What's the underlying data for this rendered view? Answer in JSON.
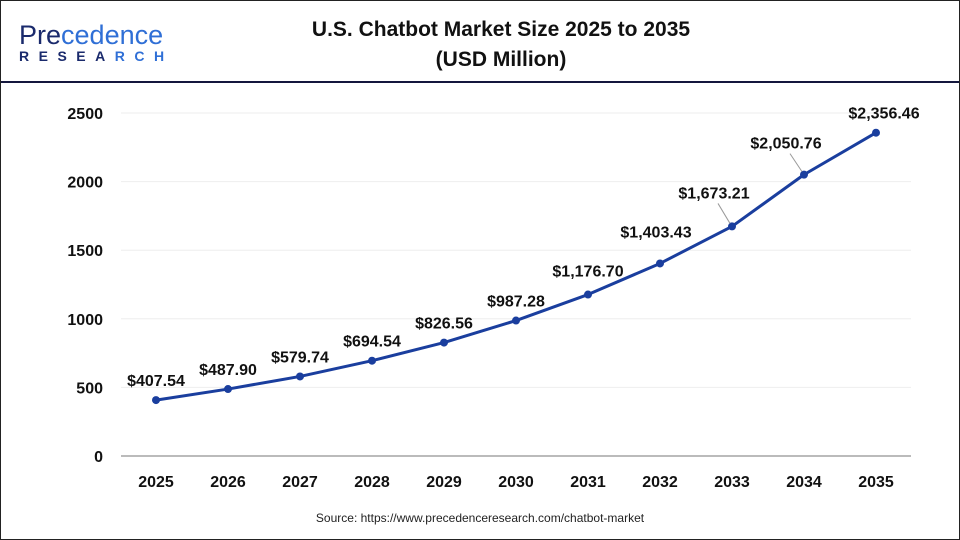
{
  "logo": {
    "line1": "Precedence",
    "line2": "RESEARCH"
  },
  "title_line1": "U.S. Chatbot Market Size 2025 to 2035",
  "title_line2": "(USD Million)",
  "source": "Source: https://www.precedenceresearch.com/chatbot-market",
  "colors": {
    "line": "#1a3e9e",
    "grid": "#eeeeee",
    "axis": "#bbbbbb"
  },
  "chart_data": {
    "type": "line",
    "title": "U.S. Chatbot Market Size 2025 to 2035 (USD Million)",
    "xlabel": "",
    "ylabel": "",
    "categories": [
      "2025",
      "2026",
      "2027",
      "2028",
      "2029",
      "2030",
      "2031",
      "2032",
      "2033",
      "2034",
      "2035"
    ],
    "values": [
      407.54,
      487.9,
      579.74,
      694.54,
      826.56,
      987.28,
      1176.7,
      1403.43,
      1673.21,
      2050.76,
      2356.46
    ],
    "labels": [
      "$407.54",
      "$487.90",
      "$579.74",
      "$694.54",
      "$826.56",
      "$987.28",
      "$1,176.70",
      "$1,403.43",
      "$1,673.21",
      "$2,050.76",
      "$2,356.46"
    ],
    "yticks": [
      "0",
      "500",
      "1000",
      "1500",
      "2000",
      "2500"
    ],
    "ylim": [
      0,
      2500
    ],
    "grid": true,
    "legend": "none"
  }
}
